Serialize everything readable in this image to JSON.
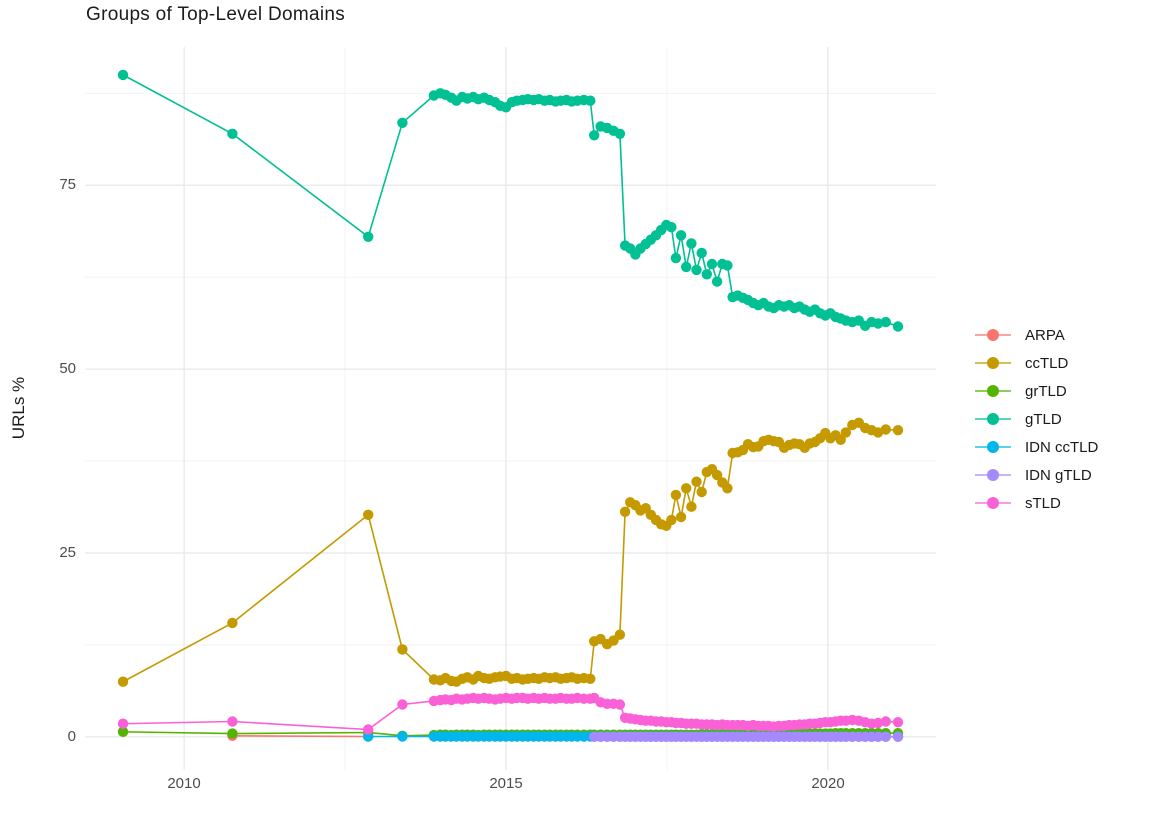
{
  "chart_data": {
    "type": "scatter",
    "title": "Groups of Top-Level Domains",
    "xlabel": "",
    "ylabel": "URLs %",
    "legend_position": "right",
    "grid": true,
    "x_range_years": [
      2008.46,
      2021.68
    ],
    "y_range_pct": [
      -4.5,
      93.8
    ],
    "x_major_ticks": [
      2010,
      2015,
      2020
    ],
    "x_minor_ticks": [
      2012.5,
      2017.5
    ],
    "y_major_ticks": [
      0,
      25,
      50,
      75
    ],
    "y_minor_ticks": [
      12.5,
      37.5,
      62.5,
      87.5
    ],
    "x_tick_labels": [
      "2010",
      "2015",
      "2020"
    ],
    "y_tick_labels": [
      "0",
      "25",
      "50",
      "75"
    ],
    "grid_major_color": "#e8e8e8",
    "grid_minor_color": "#f3f3f3",
    "x_common": [
      2009.05,
      2010.75,
      2012.86,
      2013.39,
      2013.88,
      2013.98,
      2014.06,
      2014.15,
      2014.23,
      2014.32,
      2014.4,
      2014.49,
      2014.57,
      2014.66,
      2014.74,
      2014.83,
      2014.91,
      2015.0,
      2015.09,
      2015.17,
      2015.26,
      2015.34,
      2015.43,
      2015.51,
      2015.6,
      2015.68,
      2015.77,
      2015.85,
      2015.94,
      2016.02,
      2016.11,
      2016.21,
      2016.31,
      2016.37,
      2016.47,
      2016.57,
      2016.67,
      2016.77,
      2016.85,
      2016.93,
      2017.01,
      2017.09,
      2017.17,
      2017.25,
      2017.33,
      2017.41,
      2017.49,
      2017.57,
      2017.64,
      2017.72,
      2017.8,
      2017.88,
      2017.96,
      2018.04,
      2018.12,
      2018.2,
      2018.28,
      2018.36,
      2018.44,
      2018.52,
      2018.6,
      2018.68,
      2018.76,
      2018.84,
      2018.92,
      2019.0,
      2019.08,
      2019.16,
      2019.24,
      2019.32,
      2019.4,
      2019.48,
      2019.56,
      2019.64,
      2019.72,
      2019.8,
      2019.88,
      2019.96,
      2020.04,
      2020.12,
      2020.2,
      2020.28,
      2020.38,
      2020.48,
      2020.58,
      2020.68,
      2020.78,
      2020.9,
      2021.09
    ],
    "series": [
      {
        "name": "ARPA",
        "color": "#F8766D",
        "x": [
          2010.75,
          2012.86
        ],
        "y": [
          0.15,
          0.05
        ]
      },
      {
        "name": "ccTLD",
        "color": "#C49A00",
        "y": [
          7.5,
          15.5,
          30.2,
          11.9,
          7.8,
          7.7,
          8.0,
          7.6,
          7.5,
          7.9,
          8.1,
          7.8,
          8.3,
          8.0,
          7.9,
          8.1,
          8.2,
          8.3,
          7.9,
          8.0,
          7.8,
          7.9,
          8.0,
          7.9,
          8.1,
          8.0,
          8.1,
          7.9,
          8.0,
          8.1,
          7.9,
          8.0,
          7.9,
          13.0,
          13.3,
          12.6,
          13.1,
          13.9,
          30.6,
          31.9,
          31.5,
          30.8,
          31.1,
          30.2,
          29.5,
          28.9,
          28.7,
          29.5,
          32.9,
          29.9,
          33.8,
          31.3,
          34.7,
          33.3,
          36.0,
          36.4,
          35.6,
          34.6,
          33.8,
          38.6,
          38.7,
          39.0,
          39.8,
          39.4,
          39.5,
          40.2,
          40.4,
          40.2,
          40.1,
          39.3,
          39.7,
          39.9,
          39.8,
          39.3,
          39.9,
          40.1,
          40.6,
          41.3,
          40.6,
          41.0,
          40.4,
          41.4,
          42.4,
          42.7,
          42.0,
          41.7,
          41.4,
          41.8,
          41.7
        ]
      },
      {
        "name": "grTLD",
        "color": "#53B400",
        "y": [
          0.7,
          0.45,
          0.6,
          0.15,
          0.25,
          0.3,
          0.3,
          0.25,
          0.3,
          0.3,
          0.3,
          0.3,
          0.25,
          0.3,
          0.3,
          0.3,
          0.3,
          0.3,
          0.3,
          0.3,
          0.3,
          0.3,
          0.3,
          0.3,
          0.3,
          0.3,
          0.3,
          0.3,
          0.3,
          0.3,
          0.3,
          0.3,
          0.3,
          0.3,
          0.3,
          0.3,
          0.3,
          0.3,
          0.3,
          0.3,
          0.3,
          0.3,
          0.3,
          0.3,
          0.3,
          0.3,
          0.3,
          0.3,
          0.3,
          0.3,
          0.3,
          0.3,
          0.3,
          0.35,
          0.35,
          0.35,
          0.35,
          0.35,
          0.35,
          0.35,
          0.35,
          0.35,
          0.35,
          0.4,
          0.4,
          0.4,
          0.4,
          0.4,
          0.4,
          0.4,
          0.4,
          0.4,
          0.4,
          0.45,
          0.45,
          0.45,
          0.45,
          0.45,
          0.45,
          0.5,
          0.5,
          0.5,
          0.5,
          0.5,
          0.5,
          0.5,
          0.5,
          0.5,
          0.5
        ]
      },
      {
        "name": "gTLD",
        "color": "#00C094",
        "y": [
          90.0,
          82.0,
          68.0,
          83.5,
          87.2,
          87.5,
          87.3,
          86.9,
          86.5,
          87.0,
          86.8,
          87.0,
          86.7,
          86.9,
          86.6,
          86.3,
          85.8,
          85.6,
          86.3,
          86.5,
          86.6,
          86.7,
          86.6,
          86.7,
          86.5,
          86.6,
          86.4,
          86.5,
          86.6,
          86.4,
          86.5,
          86.6,
          86.5,
          81.8,
          83.0,
          82.8,
          82.4,
          82.0,
          66.8,
          66.4,
          65.6,
          66.4,
          67.0,
          67.6,
          68.2,
          68.9,
          69.6,
          69.3,
          65.1,
          68.2,
          63.9,
          67.1,
          63.5,
          65.8,
          62.9,
          64.3,
          61.9,
          64.3,
          64.1,
          59.8,
          60.0,
          59.7,
          59.4,
          59.0,
          58.7,
          59.0,
          58.5,
          58.3,
          58.7,
          58.5,
          58.7,
          58.3,
          58.5,
          58.1,
          57.8,
          58.1,
          57.6,
          57.3,
          57.6,
          57.1,
          56.9,
          56.6,
          56.4,
          56.6,
          55.9,
          56.4,
          56.2,
          56.4,
          55.8
        ]
      },
      {
        "name": "IDN ccTLD",
        "color": "#00B6EB",
        "x_from_index": 2,
        "y_const": 0.06
      },
      {
        "name": "IDN gTLD",
        "color": "#A58AFF",
        "x_from_index": 33,
        "y_const": 0.02
      },
      {
        "name": "sTLD",
        "color": "#FB61D7",
        "y": [
          1.8,
          2.1,
          1.0,
          4.4,
          4.9,
          5.0,
          5.1,
          5.0,
          5.2,
          5.1,
          5.2,
          5.3,
          5.2,
          5.3,
          5.2,
          5.1,
          5.2,
          5.3,
          5.2,
          5.3,
          5.3,
          5.2,
          5.3,
          5.2,
          5.3,
          5.2,
          5.2,
          5.3,
          5.2,
          5.2,
          5.3,
          5.2,
          5.2,
          5.3,
          4.7,
          4.5,
          4.5,
          4.4,
          2.6,
          2.5,
          2.4,
          2.3,
          2.2,
          2.2,
          2.1,
          2.1,
          2.0,
          2.0,
          1.9,
          1.9,
          1.8,
          1.8,
          1.8,
          1.7,
          1.7,
          1.7,
          1.6,
          1.7,
          1.6,
          1.6,
          1.6,
          1.6,
          1.5,
          1.6,
          1.5,
          1.5,
          1.5,
          1.4,
          1.5,
          1.5,
          1.6,
          1.6,
          1.7,
          1.7,
          1.8,
          1.8,
          1.9,
          2.0,
          2.0,
          2.1,
          2.2,
          2.2,
          2.3,
          2.2,
          2.0,
          1.8,
          1.9,
          2.1,
          2.0
        ]
      }
    ]
  }
}
